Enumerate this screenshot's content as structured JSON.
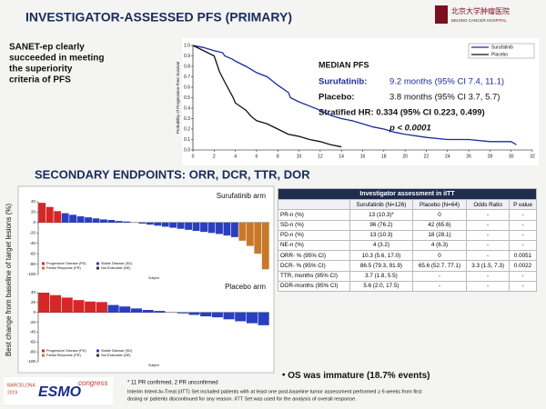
{
  "slide": {
    "title": "INVESTIGATOR-ASSESSED PFS (PRIMARY)",
    "logo_cn": "北京大学肿瘤医院",
    "logo_en": "BEIJING CANCER HOSPITAL",
    "left_text": [
      "SANET-ep clearly",
      "succeeded in meeting",
      "the superiority",
      "criteria of PFS"
    ],
    "median_heading": "MEDIAN PFS",
    "median_lines": [
      {
        "label": "Surufatinib:",
        "text": "9.2 months (95% CI 7.4, 11.1)"
      },
      {
        "label": "Placebo:",
        "text": "3.8 months (95% CI 3.7, 5.7)"
      }
    ],
    "hr_text": "Stratified HR: 0.334 (95% CI 0.223, 0.499)",
    "p_text": "p < 0.0001",
    "section_title": "SECONDARY ENDPOINTS: ORR, DCR, TTR, DOR",
    "waterfall_y_label": "Best change from baseline of target lesions (%)",
    "os_note": "OS was immature (18.7% events)",
    "footnote": "* 11 PR confirmed, 2 PR unconfirmed",
    "definition": [
      "Interim Intent-to-Treat (iITT) Set included patients with at least one post-baseline tumor assessment performed ≥ 6 weeks from first",
      "dosing or patients discontinued for any reason. iITT Set was used for the analysis of overall response."
    ],
    "congress_place": "BARCELONA",
    "congress_year": "2019",
    "congress_name": "ESMO",
    "congress_word": "congress"
  },
  "table": {
    "title": "Investigator assessment in iITT",
    "header": [
      "Surufatinib (N=126)",
      "Placebo (N=64)",
      "Odds Ratio",
      "P value"
    ],
    "rows": [
      [
        "PR-n (%)",
        "13 (10.3)*",
        "0",
        "-",
        "-"
      ],
      [
        "SD-n (%)",
        "96 (76.2)",
        "42 (65.6)",
        "-",
        "-"
      ],
      [
        "PD-n (%)",
        "13 (10.3)",
        "18 (28.1)",
        "-",
        "-"
      ],
      [
        "NE-n (%)",
        "4 (3.2)",
        "4 (6.3)",
        "-",
        "-"
      ],
      [
        "ORR- % (95% CI)",
        "10.3 (5.6, 17.0)",
        "0",
        "-",
        "0.0051"
      ],
      [
        "DCR- % (95% CI)",
        "86.5 (79.3, 91.9)",
        "65.6 (52.7, 77.1)",
        "3.3 (1.5, 7.3)",
        "0.0022"
      ],
      [
        "TTR, months (95% CI)",
        "3.7 (1.8, 5.5)",
        "-",
        "-",
        "-"
      ],
      [
        "DOR-months (95% CI)",
        "5.6 (2.0, 17.5)",
        "-",
        "-",
        "-"
      ]
    ]
  },
  "chart_data": [
    {
      "type": "line",
      "y_label": "Probability of Progression-Free Survival",
      "xlim": [
        0,
        32
      ],
      "xticks": [
        0,
        2,
        4,
        6,
        8,
        10,
        12,
        14,
        16,
        18,
        20,
        22,
        24,
        26,
        28,
        30,
        32
      ],
      "ylim": [
        0,
        1
      ],
      "yticks": [
        {
          "value": 0,
          "label": "0.0"
        },
        {
          "value": 0.1,
          "label": "0.1"
        },
        {
          "value": 0.2,
          "label": "0.2"
        },
        {
          "value": 0.3,
          "label": "0.3"
        },
        {
          "value": 0.4,
          "label": "0.4"
        },
        {
          "value": 0.5,
          "label": "0.5"
        },
        {
          "value": 0.6,
          "label": "0.6"
        },
        {
          "value": 0.7,
          "label": "0.7"
        },
        {
          "value": 0.8,
          "label": "0.8"
        },
        {
          "value": 0.9,
          "label": "0.9"
        },
        {
          "value": 1,
          "label": "1.0"
        }
      ],
      "legend": "upper right",
      "series": [
        {
          "name": "Surufatinib",
          "color": "#1a2a9c",
          "x": [
            0,
            1,
            2,
            2.8,
            3,
            3.7,
            4,
            5,
            5.5,
            6,
            7,
            7.5,
            8,
            9,
            9.2,
            10,
            11,
            12,
            13,
            14,
            15,
            16,
            17,
            18,
            19,
            20,
            22,
            24,
            26,
            28,
            30,
            30.5
          ],
          "values": [
            1,
            0.98,
            0.95,
            0.93,
            0.9,
            0.87,
            0.85,
            0.8,
            0.77,
            0.74,
            0.7,
            0.66,
            0.62,
            0.55,
            0.5,
            0.46,
            0.42,
            0.38,
            0.33,
            0.3,
            0.28,
            0.25,
            0.22,
            0.2,
            0.17,
            0.15,
            0.12,
            0.1,
            0.1,
            0.08,
            0.08,
            0.05
          ]
        },
        {
          "name": "Placebo",
          "color": "#111111",
          "x": [
            0,
            1,
            2,
            2.5,
            3,
            3.8,
            4,
            5,
            5.5,
            6,
            7,
            8,
            9,
            10,
            11,
            12,
            13,
            14
          ],
          "values": [
            1,
            0.95,
            0.9,
            0.75,
            0.65,
            0.5,
            0.45,
            0.38,
            0.32,
            0.28,
            0.25,
            0.2,
            0.15,
            0.13,
            0.1,
            0.08,
            0.05,
            0.03
          ]
        }
      ]
    },
    {
      "type": "bar",
      "title": "Surufatinib arm",
      "x_label": "Subject",
      "ylim": [
        -100,
        40
      ],
      "yticks": [
        40,
        20,
        0,
        -20,
        -40,
        -60,
        -80,
        -100
      ],
      "series": [
        {
          "name": "Progressive Disease (PD)",
          "color": "#d62728",
          "values": [
            38,
            30,
            22,
            null,
            null,
            null,
            null,
            null,
            null,
            null,
            null,
            null,
            null,
            null,
            null,
            null,
            null,
            null,
            null,
            null,
            null,
            null,
            null,
            null,
            null,
            null,
            null,
            null,
            null,
            null
          ]
        },
        {
          "name": "Stable Disease (SD)",
          "color": "#2a3fbf",
          "values": [
            null,
            null,
            null,
            18,
            15,
            12,
            10,
            8,
            6,
            5,
            3,
            2,
            0,
            -2,
            -4,
            -6,
            -8,
            -10,
            -12,
            -14,
            -16,
            -18,
            -20,
            -22,
            -25,
            -28,
            null,
            null,
            null,
            null
          ]
        },
        {
          "name": "Partial Response (PR)",
          "color": "#c8782a",
          "values": [
            null,
            null,
            null,
            null,
            null,
            null,
            null,
            null,
            null,
            null,
            null,
            null,
            null,
            null,
            null,
            null,
            null,
            null,
            null,
            null,
            null,
            null,
            null,
            null,
            null,
            null,
            -35,
            -45,
            -60,
            -90
          ]
        },
        {
          "name": "Not Evaluable (NE)",
          "color": "#333333",
          "values": [
            null,
            null,
            null,
            null,
            null,
            null,
            null,
            null,
            null,
            null,
            null,
            null,
            null,
            null,
            null,
            null,
            null,
            null,
            null,
            null,
            null,
            null,
            null,
            null,
            null,
            null,
            null,
            null,
            null,
            null
          ]
        }
      ]
    },
    {
      "type": "bar",
      "title": "Placebo arm",
      "x_label": "Subject",
      "ylim": [
        -100,
        40
      ],
      "yticks": [
        40,
        20,
        0,
        -20,
        -40,
        -60,
        -80,
        -100
      ],
      "series": [
        {
          "name": "Progressive Disease (PD)",
          "color": "#d62728",
          "values": [
            40,
            35,
            30,
            25,
            22,
            21,
            null,
            null,
            null,
            null,
            null,
            null,
            null,
            null,
            null,
            null,
            null,
            null,
            null,
            null
          ]
        },
        {
          "name": "Stable Disease (SD)",
          "color": "#2a3fbf",
          "values": [
            null,
            null,
            null,
            null,
            null,
            null,
            15,
            12,
            8,
            5,
            3,
            0,
            -2,
            -5,
            -8,
            -10,
            -14,
            -18,
            -22,
            -26
          ]
        },
        {
          "name": "Partial Response (PR)",
          "color": "#c8782a",
          "values": [
            null,
            null,
            null,
            null,
            null,
            null,
            null,
            null,
            null,
            null,
            null,
            null,
            null,
            null,
            null,
            null,
            null,
            null,
            null,
            null
          ]
        },
        {
          "name": "Not Evaluable (NE)",
          "color": "#333333",
          "values": [
            null,
            null,
            null,
            null,
            null,
            null,
            null,
            null,
            null,
            null,
            null,
            null,
            null,
            null,
            null,
            null,
            null,
            null,
            null,
            null
          ]
        }
      ]
    }
  ]
}
